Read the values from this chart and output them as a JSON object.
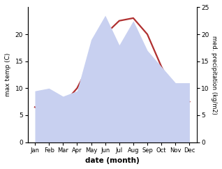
{
  "months": [
    "Jan",
    "Feb",
    "Mar",
    "Apr",
    "May",
    "Jun",
    "Jul",
    "Aug",
    "Sep",
    "Oct",
    "Nov",
    "Dec"
  ],
  "x": [
    0,
    1,
    2,
    3,
    4,
    5,
    6,
    7,
    8,
    9,
    10,
    11
  ],
  "temperature": [
    6.5,
    5.0,
    7.0,
    10.0,
    15.0,
    20.0,
    22.5,
    23.0,
    20.0,
    14.0,
    9.0,
    7.5
  ],
  "precipitation": [
    9.5,
    10.0,
    8.5,
    9.5,
    19.0,
    23.5,
    18.0,
    22.5,
    17.0,
    14.0,
    11.0,
    11.0
  ],
  "temp_color": "#b03030",
  "precip_fill_color": "#c8d0f0",
  "left_ylabel": "max temp (C)",
  "right_ylabel": "med. precipitation (kg/m2)",
  "xlabel": "date (month)",
  "ylim_left": [
    0,
    25
  ],
  "ylim_right": [
    0,
    25
  ],
  "left_yticks": [
    0,
    5,
    10,
    15,
    20
  ],
  "right_yticks": [
    0,
    5,
    10,
    15,
    20,
    25
  ],
  "background_color": "#ffffff"
}
